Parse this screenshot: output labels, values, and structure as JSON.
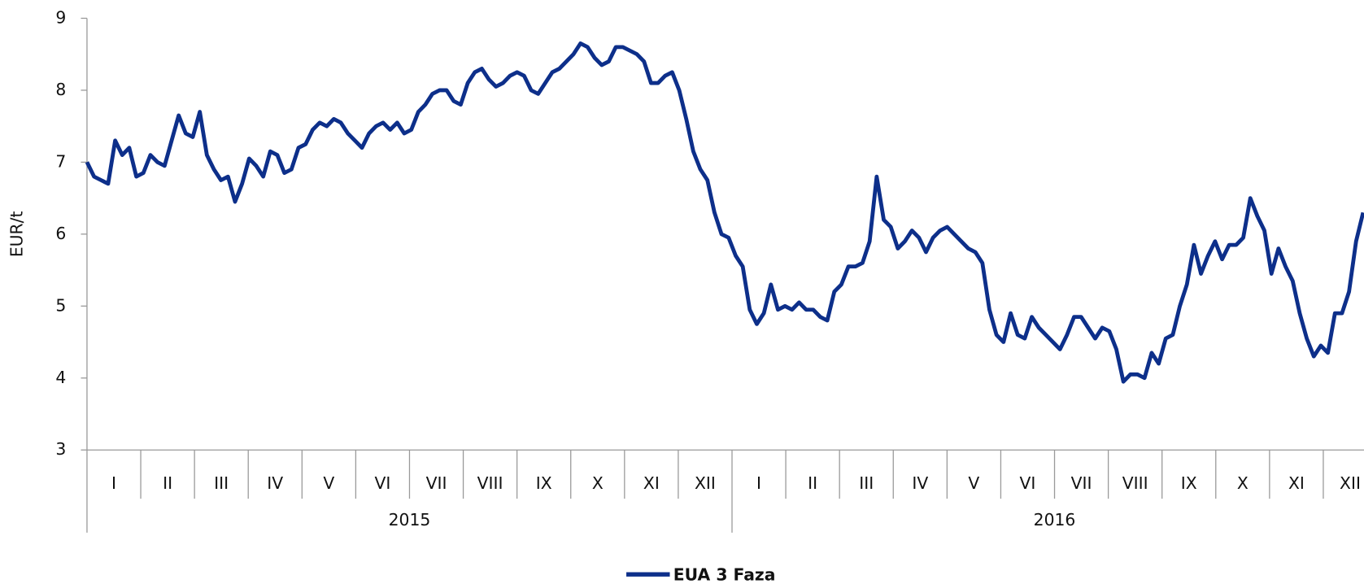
{
  "chart_data": {
    "type": "line",
    "y_label": "EUR/t",
    "ylim": [
      3,
      9
    ],
    "yticks": [
      3,
      4,
      5,
      6,
      7,
      8,
      9
    ],
    "months": [
      "I",
      "II",
      "III",
      "IV",
      "V",
      "VI",
      "VII",
      "VIII",
      "IX",
      "X",
      "XI",
      "XII",
      "I",
      "II",
      "III",
      "IV",
      "V",
      "VI",
      "VII",
      "VIII",
      "IX",
      "X",
      "XI",
      "XII"
    ],
    "years": [
      "2015",
      "2016"
    ],
    "series": [
      {
        "name": "EUA 3 Faza",
        "color": "#0d2f8a",
        "values": [
          7.0,
          6.8,
          6.75,
          6.7,
          7.3,
          7.1,
          7.2,
          6.8,
          6.85,
          7.1,
          7.0,
          6.95,
          7.3,
          7.65,
          7.4,
          7.35,
          7.7,
          7.1,
          6.9,
          6.75,
          6.8,
          6.45,
          6.7,
          7.05,
          6.95,
          6.8,
          7.15,
          7.1,
          6.85,
          6.9,
          7.2,
          7.25,
          7.45,
          7.55,
          7.5,
          7.6,
          7.55,
          7.4,
          7.3,
          7.2,
          7.4,
          7.5,
          7.55,
          7.45,
          7.55,
          7.4,
          7.45,
          7.7,
          7.8,
          7.95,
          8.0,
          8.0,
          7.85,
          7.8,
          8.1,
          8.25,
          8.3,
          8.15,
          8.05,
          8.1,
          8.2,
          8.25,
          8.2,
          8.0,
          7.95,
          8.1,
          8.25,
          8.3,
          8.4,
          8.5,
          8.65,
          8.6,
          8.45,
          8.35,
          8.4,
          8.6,
          8.6,
          8.55,
          8.5,
          8.4,
          8.1,
          8.1,
          8.2,
          8.25,
          8.0,
          7.6,
          7.15,
          6.9,
          6.75,
          6.3,
          6.0,
          5.95,
          5.7,
          5.55,
          4.95,
          4.75,
          4.9,
          5.3,
          4.95,
          5.0,
          4.95,
          5.05,
          4.95,
          4.95,
          4.85,
          4.8,
          5.2,
          5.3,
          5.55,
          5.55,
          5.6,
          5.9,
          6.8,
          6.2,
          6.1,
          5.8,
          5.9,
          6.05,
          5.95,
          5.75,
          5.95,
          6.05,
          6.1,
          6.0,
          5.9,
          5.8,
          5.75,
          5.6,
          4.95,
          4.6,
          4.5,
          4.9,
          4.6,
          4.55,
          4.85,
          4.7,
          4.6,
          4.5,
          4.4,
          4.6,
          4.85,
          4.85,
          4.7,
          4.55,
          4.7,
          4.65,
          4.4,
          3.95,
          4.05,
          4.05,
          4.0,
          4.35,
          4.2,
          4.55,
          4.6,
          5.0,
          5.3,
          5.85,
          5.45,
          5.7,
          5.9,
          5.65,
          5.85,
          5.85,
          5.95,
          6.5,
          6.25,
          6.05,
          5.45,
          5.8,
          5.55,
          5.35,
          4.9,
          4.55,
          4.3,
          4.45,
          4.35,
          4.9,
          4.9,
          5.2,
          5.9,
          6.3
        ]
      }
    ],
    "legend": "bottom"
  }
}
